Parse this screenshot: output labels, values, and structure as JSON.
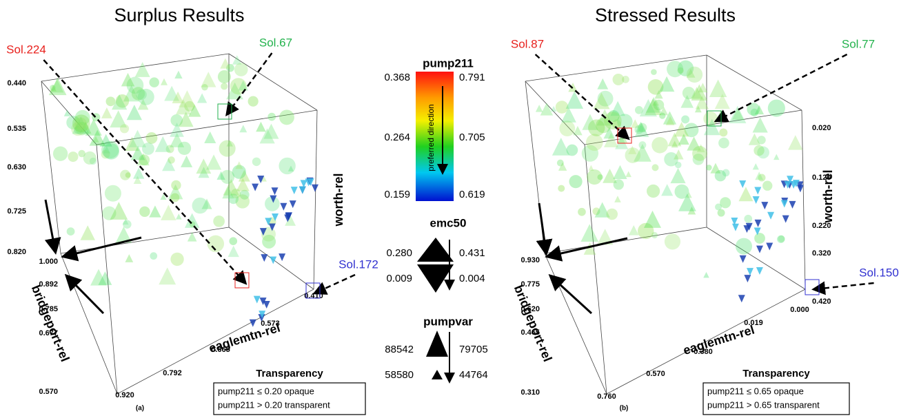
{
  "panels": [
    {
      "title": "Surplus Results",
      "label": "(a)",
      "worth_axis": {
        "label": "worth-rel",
        "ticks": [
          "0.440",
          "0.535",
          "0.630",
          "0.725",
          "0.820"
        ]
      },
      "bridgeport_axis": {
        "label": "bridgeport-rel",
        "ticks": [
          "1.000",
          "0.892",
          "0.785",
          "0.677",
          "0.570"
        ]
      },
      "eaglemtn_axis": {
        "label": "eaglemtn-rel",
        "ticks": [
          "0.920",
          "0.792",
          "0.665",
          "0.573",
          "0.410"
        ]
      },
      "callouts": [
        {
          "text": "Sol.224",
          "color": "#e8201c"
        },
        {
          "text": "Sol.67",
          "color": "#22b24c"
        },
        {
          "text": "Sol.172",
          "color": "#3030d0"
        }
      ],
      "transparency": {
        "title": "Transparency",
        "lines": [
          "pump211 ≤ 0.20 opaque",
          "pump211 > 0.20 transparent"
        ]
      }
    },
    {
      "title": "Stressed Results",
      "label": "(b)",
      "worth_axis": {
        "label": "worth-rel",
        "ticks": [
          "0.020",
          "0.120",
          "0.220",
          "0.320",
          "0.420"
        ]
      },
      "bridgeport_axis": {
        "label": "bridgeport-rel",
        "ticks": [
          "0.930",
          "0.775",
          "0.620",
          "0.465",
          "0.310"
        ]
      },
      "eaglemtn_axis": {
        "label": "eaglemtn-rel",
        "ticks": [
          "0.760",
          "0.570",
          "0.380",
          "0.019",
          "0.000"
        ]
      },
      "callouts": [
        {
          "text": "Sol.87",
          "color": "#e8201c"
        },
        {
          "text": "Sol.77",
          "color": "#22b24c"
        },
        {
          "text": "Sol.150",
          "color": "#3030d0"
        }
      ],
      "transparency": {
        "title": "Transparency",
        "lines": [
          "pump211 ≤ 0.65 opaque",
          "pump211 > 0.65 transparent"
        ]
      }
    }
  ],
  "legend": {
    "pump211": {
      "title": "pump211",
      "left": [
        "0.368",
        "0.264",
        "0.159"
      ],
      "right": [
        "0.791",
        "0.705",
        "0.619"
      ],
      "direction": "preferred direction"
    },
    "emc50": {
      "title": "emc50",
      "left": [
        "0.280",
        "0.009"
      ],
      "right": [
        "0.431",
        "0.004"
      ]
    },
    "pumpvar": {
      "title": "pumpvar",
      "left": [
        "88542",
        "58580"
      ],
      "right": [
        "79705",
        "44764"
      ]
    }
  }
}
